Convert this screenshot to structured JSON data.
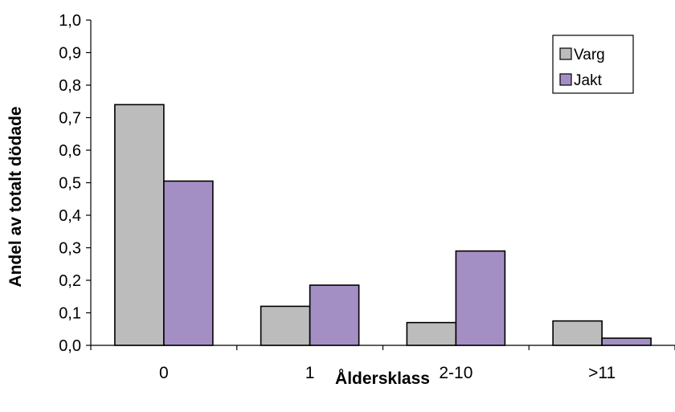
{
  "chart_data": {
    "type": "bar",
    "categories": [
      "0",
      "1",
      "2-10",
      ">11"
    ],
    "series": [
      {
        "name": "Varg",
        "color": "#bcbcbc",
        "values": [
          0.74,
          0.12,
          0.07,
          0.075
        ]
      },
      {
        "name": "Jakt",
        "color": "#a48fc4",
        "values": [
          0.505,
          0.185,
          0.29,
          0.022
        ]
      }
    ],
    "xlabel": "Åldersklass",
    "ylabel": "Andel av totalt dödade",
    "ylim": [
      0,
      1.0
    ],
    "yticks": [
      "0,0",
      "0,1",
      "0,2",
      "0,3",
      "0,4",
      "0,5",
      "0,6",
      "0,7",
      "0,8",
      "0,9",
      "1,0"
    ],
    "grid": false,
    "legend_position": "top-right"
  }
}
